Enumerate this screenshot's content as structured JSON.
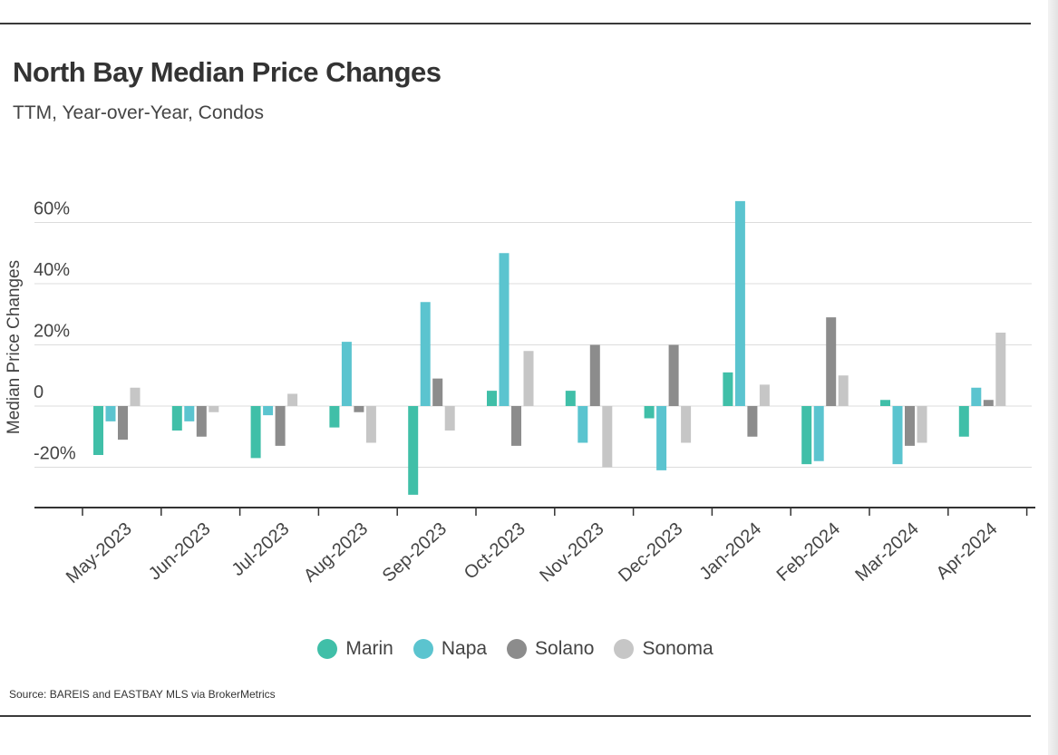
{
  "title": "North Bay Median Price Changes",
  "subtitle": "TTM, Year-over-Year, Condos",
  "source": "Source:  BAREIS and EASTBAY MLS via BrokerMetrics",
  "chart_data": {
    "type": "bar",
    "ylabel": "Median Price Changes",
    "ylim": [
      -33,
      68
    ],
    "yticks": [
      {
        "value": 60,
        "label": "60%"
      },
      {
        "value": 40,
        "label": "40%"
      },
      {
        "value": 20,
        "label": "20%"
      },
      {
        "value": 0,
        "label": "0"
      },
      {
        "value": -20,
        "label": "-20%"
      }
    ],
    "categories": [
      "May-2023",
      "Jun-2023",
      "Jul-2023",
      "Aug-2023",
      "Sep-2023",
      "Oct-2023",
      "Nov-2023",
      "Dec-2023",
      "Jan-2024",
      "Feb-2024",
      "Mar-2024",
      "Apr-2024"
    ],
    "series": [
      {
        "name": "Marin",
        "color": "#40bfa8",
        "values": [
          -16,
          -8,
          -17,
          -7,
          -29,
          5,
          5,
          -4,
          11,
          -19,
          2,
          -10
        ]
      },
      {
        "name": "Napa",
        "color": "#5bc4cf",
        "values": [
          -5,
          -5,
          -3,
          21,
          34,
          50,
          -12,
          -21,
          67,
          -18,
          -19,
          6
        ]
      },
      {
        "name": "Solano",
        "color": "#8c8c8c",
        "values": [
          -11,
          -10,
          -13,
          -2,
          9,
          -13,
          20,
          20,
          -10,
          29,
          -13,
          2
        ]
      },
      {
        "name": "Sonoma",
        "color": "#c6c6c6",
        "values": [
          6,
          -2,
          4,
          -12,
          -8,
          18,
          -20,
          -12,
          7,
          10,
          -12,
          24
        ]
      }
    ],
    "grid": true,
    "legend_position": "bottom-center"
  }
}
